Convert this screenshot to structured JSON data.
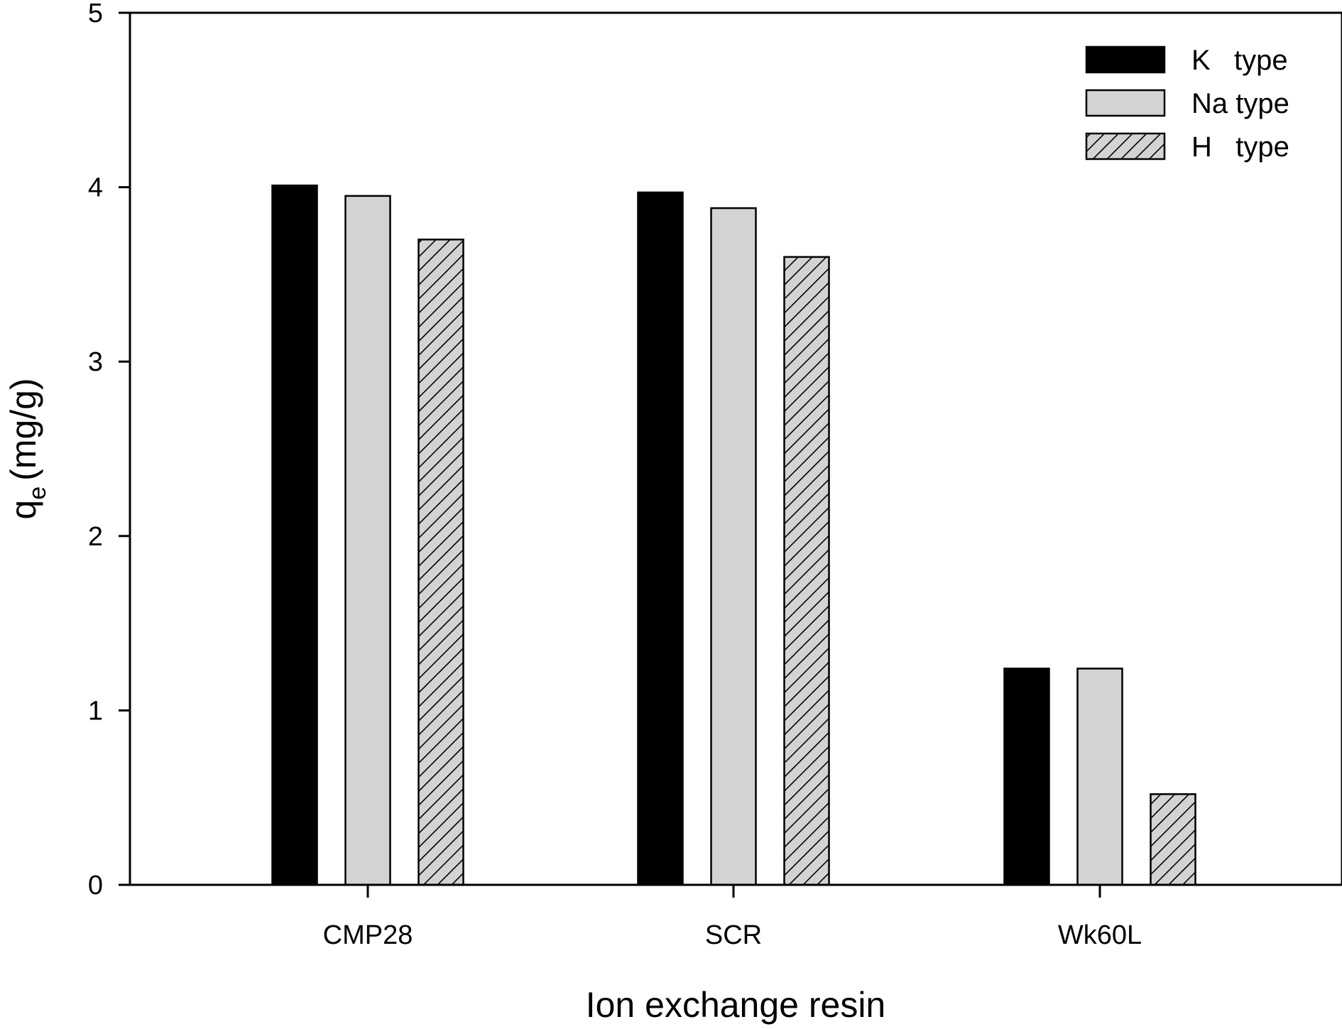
{
  "chart_data": {
    "type": "bar",
    "title": "",
    "xlabel": "Ion exchange resin",
    "ylabel_main": "q",
    "ylabel_sub": "e",
    "ylabel_unit": "(mg/g)",
    "ylim": [
      0,
      5
    ],
    "yticks": [
      "0",
      "1",
      "2",
      "3",
      "4",
      "5"
    ],
    "categories": [
      "CMP28",
      "SCR",
      "Wk60L"
    ],
    "series": [
      {
        "name": "K   type",
        "values": [
          4.01,
          3.97,
          1.24
        ],
        "fill": "#000000",
        "pattern": "solid"
      },
      {
        "name": "Na type",
        "values": [
          3.95,
          3.88,
          1.24
        ],
        "fill": "#d3d3d3",
        "pattern": "solid"
      },
      {
        "name": "H   type",
        "values": [
          3.7,
          3.6,
          0.52
        ],
        "fill": "#d3d3d3",
        "pattern": "hatch"
      }
    ],
    "legend_position": "top-right",
    "grid": false
  }
}
